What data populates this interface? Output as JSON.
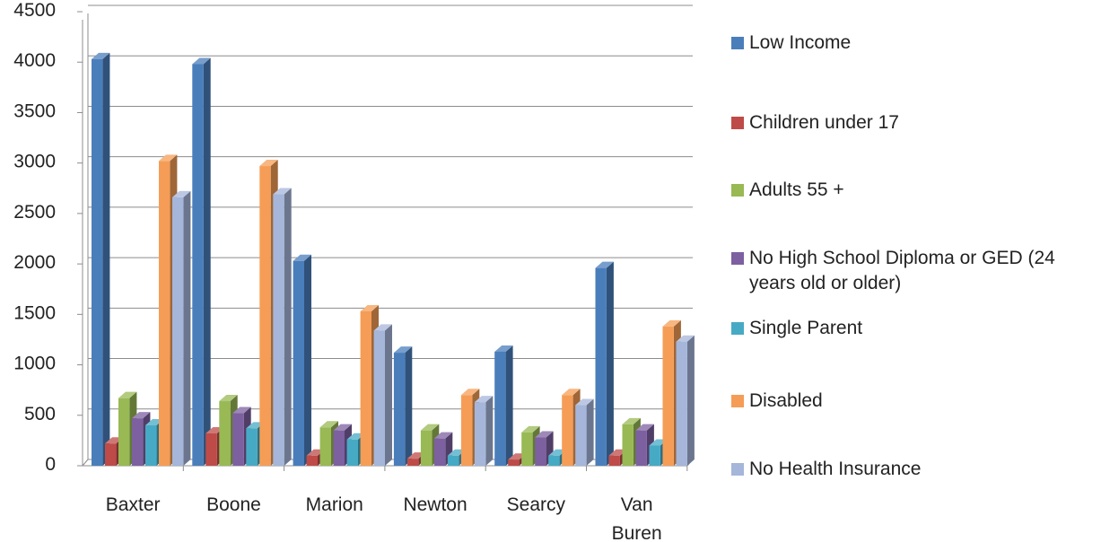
{
  "chart_data": {
    "type": "bar",
    "title": "",
    "xlabel": "",
    "ylabel": "",
    "ylim": [
      0,
      4500
    ],
    "yticks": [
      "0",
      "500",
      "1000",
      "1500",
      "2000",
      "2500",
      "3000",
      "3500",
      "4000",
      "4500"
    ],
    "grid": true,
    "legend_position": "right",
    "categories": [
      "Baxter",
      "Boone",
      "Marion",
      "Newton",
      "Searcy",
      "Van Buren"
    ],
    "series": [
      {
        "name": "Low Income",
        "color": "#4A7EBB",
        "values": [
          4030,
          3980,
          2030,
          1120,
          1130,
          1960
        ]
      },
      {
        "name": "Children under 17",
        "color": "#BE4B48",
        "values": [
          220,
          320,
          100,
          70,
          60,
          100
        ]
      },
      {
        "name": "Adults 55 +",
        "color": "#98B954",
        "values": [
          670,
          640,
          380,
          350,
          330,
          410
        ]
      },
      {
        "name": "No High School Diploma or GED (24 years old or older)",
        "color": "#7D60A0",
        "values": [
          470,
          520,
          350,
          270,
          280,
          350
        ]
      },
      {
        "name": "Single Parent",
        "color": "#46AAC5",
        "values": [
          400,
          370,
          260,
          100,
          100,
          200
        ]
      },
      {
        "name": "Disabled",
        "color": "#F59D56",
        "values": [
          3020,
          2970,
          1530,
          700,
          700,
          1380
        ]
      },
      {
        "name": "No Health Insurance",
        "color": "#A5B6DA",
        "values": [
          2660,
          2690,
          1340,
          630,
          600,
          1230
        ]
      }
    ]
  }
}
